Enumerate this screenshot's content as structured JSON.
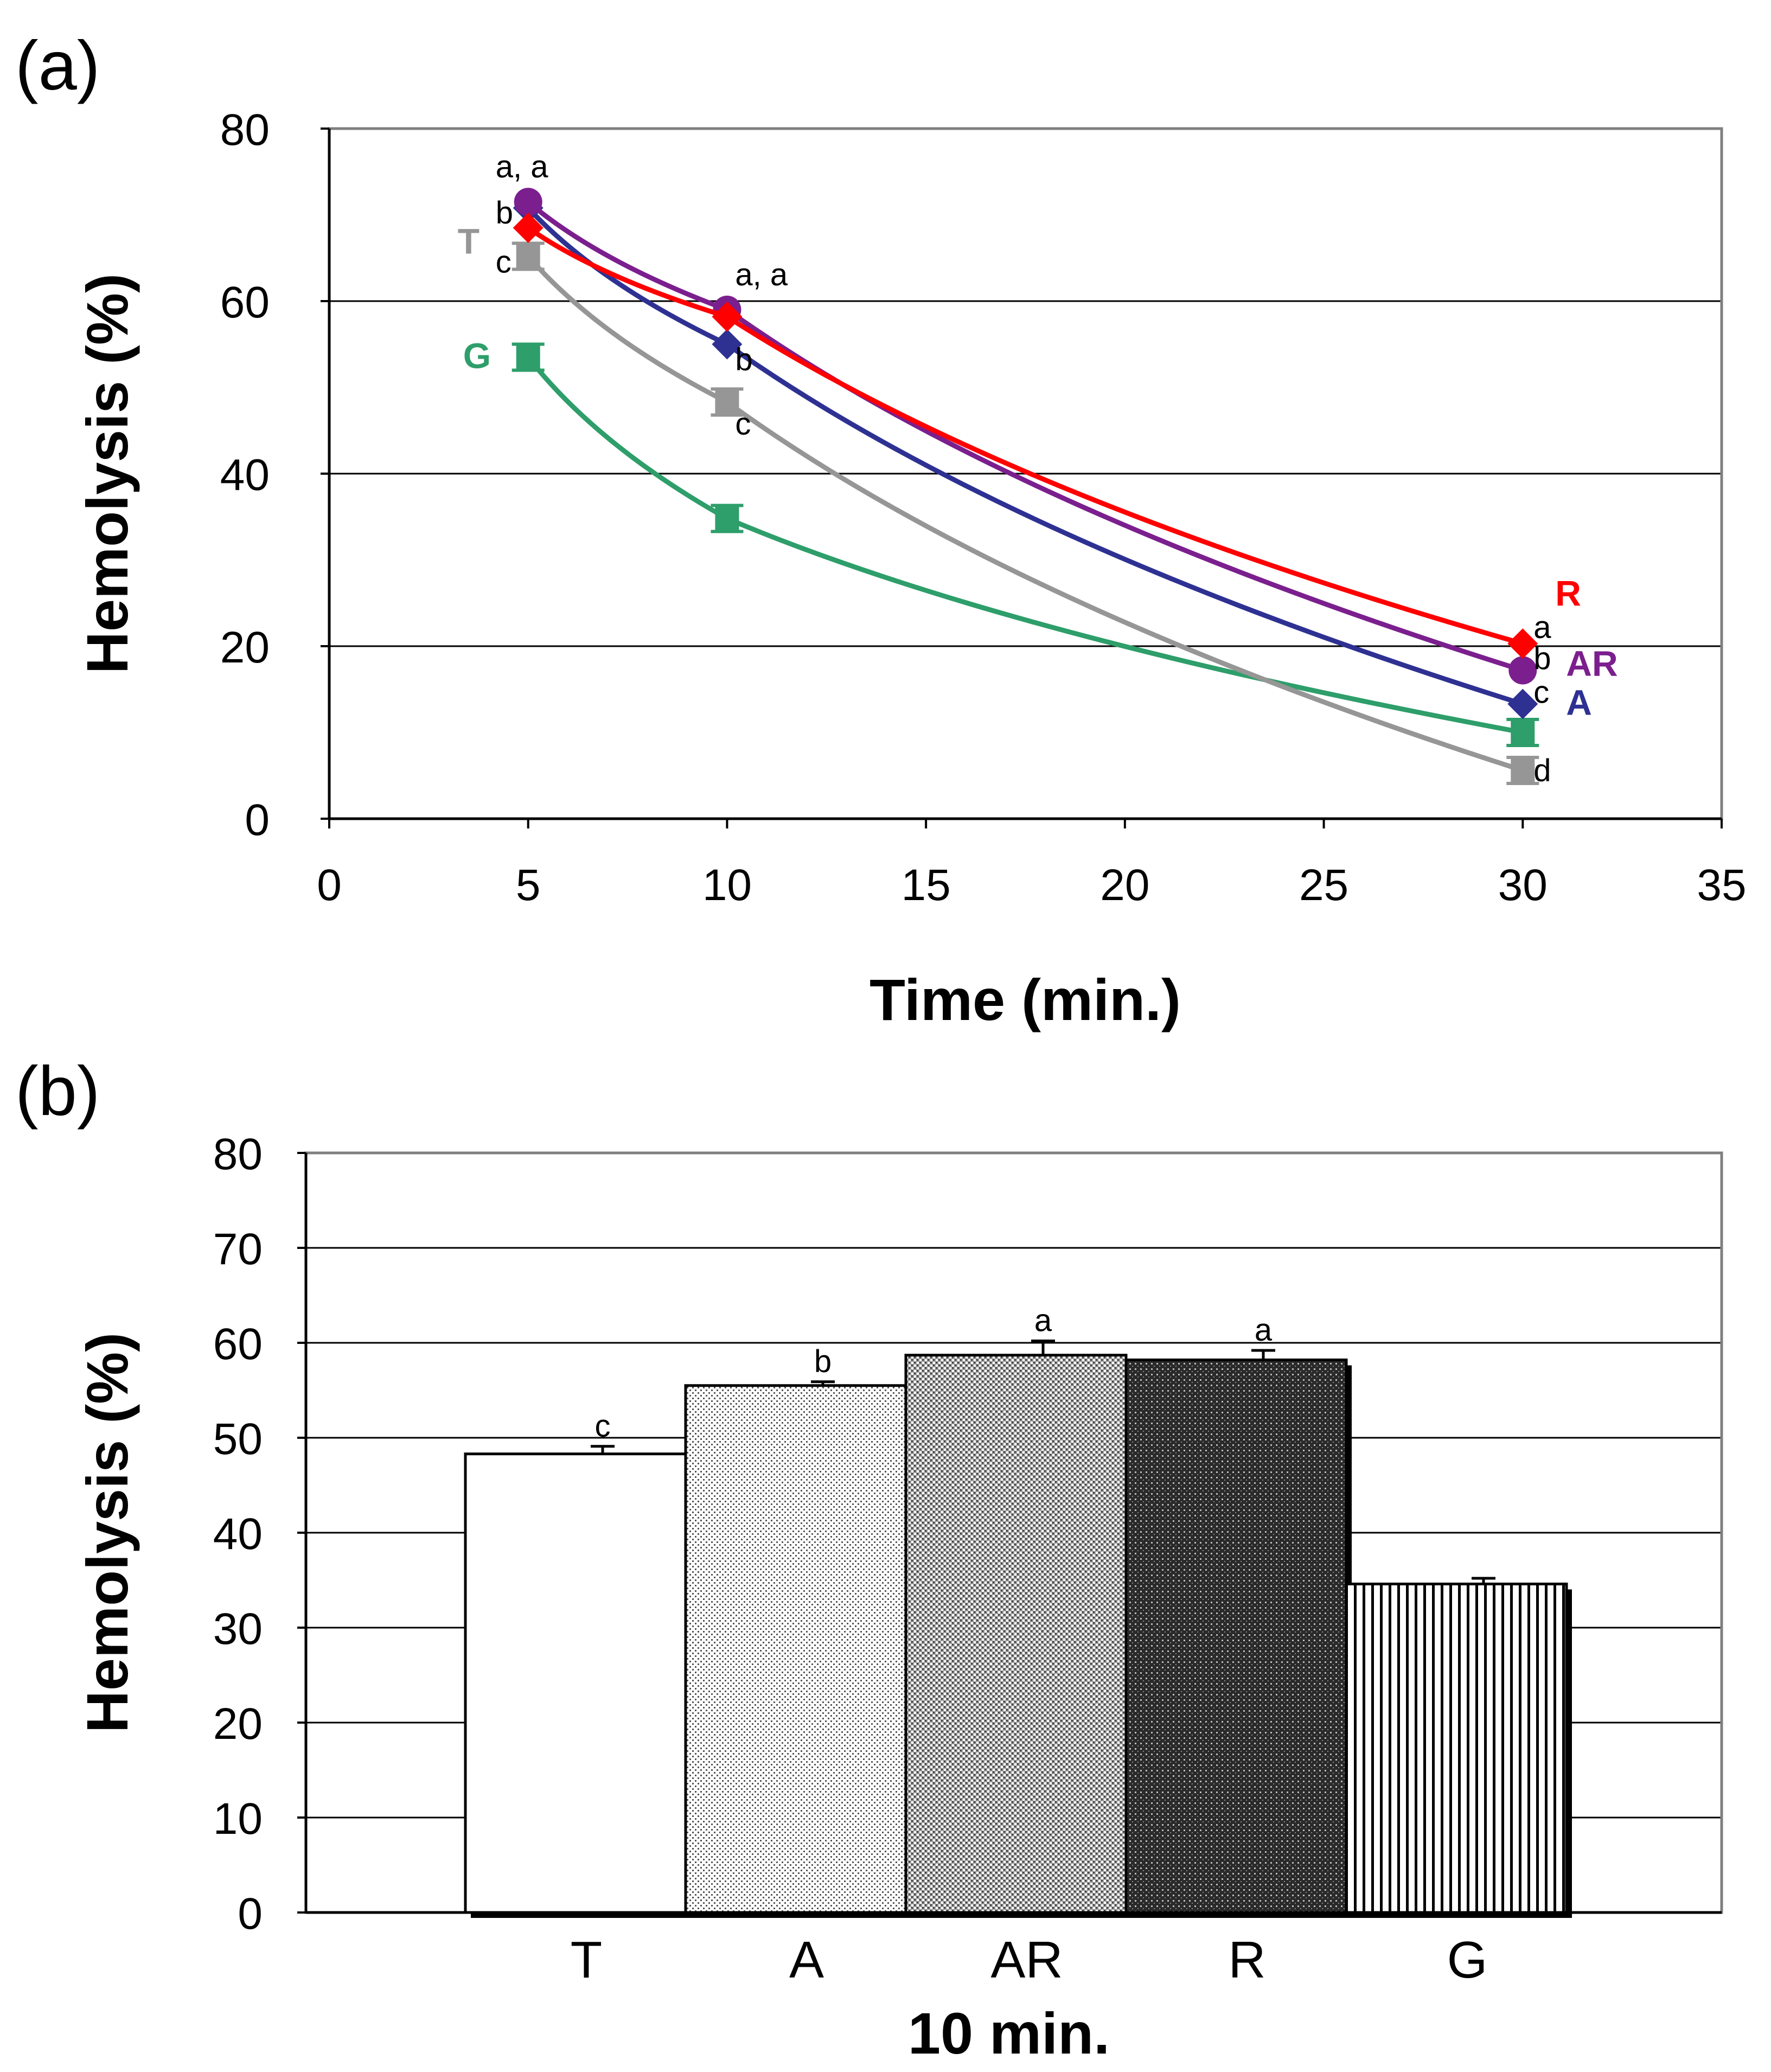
{
  "panel_labels": [
    "(a)",
    "(b)"
  ],
  "colors": {
    "T": "#969696",
    "A": "#2E3192",
    "AR": "#7B1F8E",
    "R": "#FF0000",
    "G": "#2E9E6A",
    "axis": "#000000",
    "grid": "#000000"
  },
  "chart_data": [
    {
      "type": "line",
      "title": "",
      "xlabel": "Time (min.)",
      "ylabel": "Hemolysis (%)",
      "xlim": [
        0,
        35
      ],
      "ylim": [
        0,
        80
      ],
      "xticks": [
        "0",
        "5",
        "10",
        "15",
        "20",
        "25",
        "30",
        "35"
      ],
      "yticks": [
        "0",
        "20",
        "40",
        "60",
        "80"
      ],
      "grid": "horizontal",
      "x": [
        5,
        10,
        30
      ],
      "series": [
        {
          "name": "R",
          "values": [
            68.5,
            58.2,
            20.3
          ],
          "marker": "diamond",
          "color": "#FF0000"
        },
        {
          "name": "AR",
          "values": [
            71.5,
            59.0,
            17.2
          ],
          "marker": "circle",
          "color": "#7B1F8E"
        },
        {
          "name": "A",
          "values": [
            70.8,
            55.0,
            13.3
          ],
          "marker": "diamond",
          "color": "#2E3192"
        },
        {
          "name": "T",
          "values": [
            65.2,
            48.3,
            5.6
          ],
          "marker": "square",
          "color": "#969696"
        },
        {
          "name": "G",
          "values": [
            53.5,
            34.8,
            10.0
          ],
          "marker": "square",
          "color": "#2E9E6A"
        }
      ],
      "annotations": [
        {
          "text": "a, a",
          "x": 5,
          "y": 71.5
        },
        {
          "text": "b",
          "x": 5,
          "y": 68.5
        },
        {
          "text": "c",
          "x": 5,
          "y": 65.2
        },
        {
          "text": "a, a",
          "x": 10,
          "y": 59.0
        },
        {
          "text": "b",
          "x": 10,
          "y": 55.0
        },
        {
          "text": "c",
          "x": 10,
          "y": 48.3
        },
        {
          "text": "a",
          "x": 30,
          "y": 20.3
        },
        {
          "text": "b",
          "x": 30,
          "y": 17.2
        },
        {
          "text": "c",
          "x": 30,
          "y": 13.3
        },
        {
          "text": "d",
          "x": 30,
          "y": 5.6
        }
      ]
    },
    {
      "type": "bar",
      "title": "",
      "xlabel": "10 min.",
      "ylabel": "Hemolysis (%)",
      "ylim": [
        0,
        80
      ],
      "yticks": [
        "0",
        "10",
        "20",
        "30",
        "40",
        "50",
        "60",
        "70",
        "80"
      ],
      "grid": "horizontal",
      "categories": [
        "T",
        "A",
        "AR",
        "R",
        "G"
      ],
      "values": [
        48.3,
        55.5,
        58.7,
        58.2,
        34.6
      ],
      "errors": [
        0.8,
        0.4,
        1.5,
        1.0,
        0.6
      ],
      "significance": [
        "c",
        "b",
        "a",
        "a",
        ""
      ]
    }
  ]
}
